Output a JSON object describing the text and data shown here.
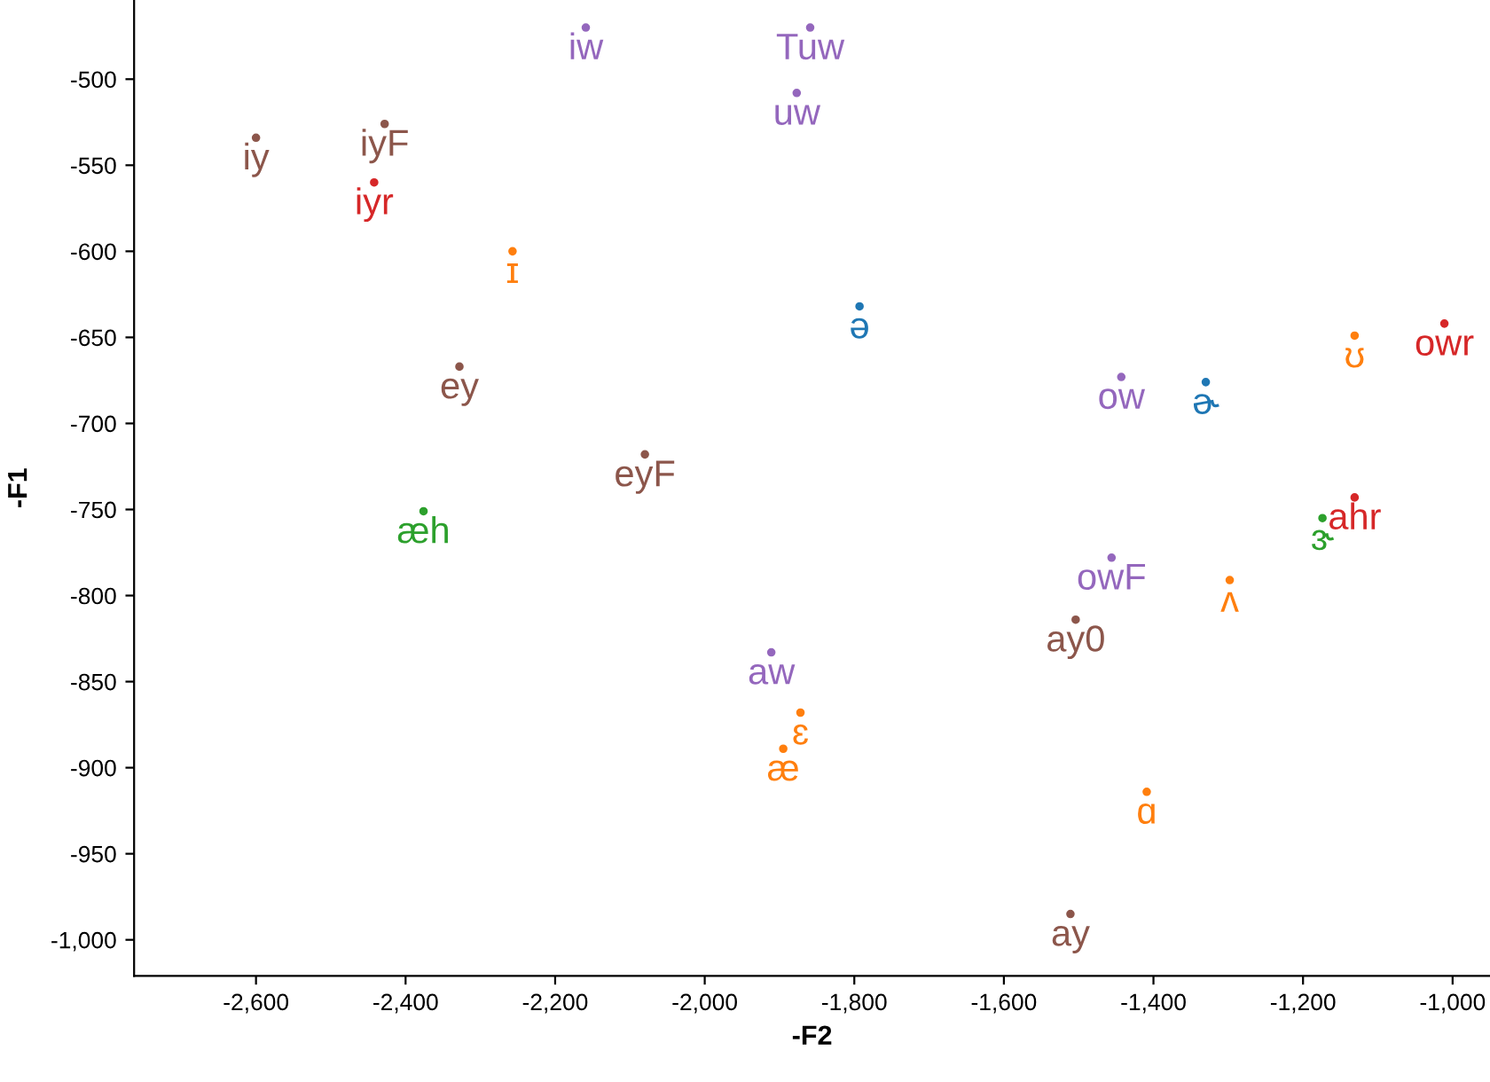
{
  "chart_data": {
    "type": "scatter",
    "xlabel": "-F2",
    "ylabel": "-F1",
    "marker": "circle",
    "grid": false,
    "legend": false,
    "xlim": [
      -2763,
      -950
    ],
    "ylim": [
      -1021,
      -454
    ],
    "xticks": [
      {
        "value": -2600,
        "label": "-2,600"
      },
      {
        "value": -2400,
        "label": "-2,400"
      },
      {
        "value": -2200,
        "label": "-2,200"
      },
      {
        "value": -2000,
        "label": "-2,000"
      },
      {
        "value": -1800,
        "label": "-1,800"
      },
      {
        "value": -1600,
        "label": "-1,600"
      },
      {
        "value": -1400,
        "label": "-1,400"
      },
      {
        "value": -1200,
        "label": "-1,200"
      },
      {
        "value": -1000,
        "label": "-1,000"
      }
    ],
    "yticks": [
      -500,
      -550,
      -600,
      -650,
      -700,
      -750,
      -800,
      -850,
      -900,
      -950,
      {
        "value": -1000,
        "label": "-1,000"
      }
    ],
    "series": [
      {
        "color": "#8c564b",
        "x": [
          -2600,
          -2428,
          -2328,
          -2080,
          -1504,
          -1511
        ],
        "values": [
          -534,
          -526,
          -667,
          -718,
          -814,
          -985
        ],
        "value_labels": [
          "iy",
          "iyF",
          "ey",
          "eyF",
          "ay0",
          "ay"
        ]
      },
      {
        "color": "#9467bd",
        "x": [
          -2159,
          -1859,
          -1877,
          -1443,
          -1456,
          -1911
        ],
        "values": [
          -470,
          -470,
          -508,
          -673,
          -778,
          -833
        ],
        "value_labels": [
          "iw",
          "Tuw",
          "uw",
          "ow",
          "owF",
          "aw"
        ]
      },
      {
        "color": "#d62728",
        "x": [
          -2442,
          -1011,
          -1131
        ],
        "values": [
          -560,
          -642,
          -743
        ],
        "value_labels": [
          "iyr",
          "owr",
          "ahr"
        ]
      },
      {
        "color": "#ff7f0e",
        "x": [
          -2257,
          -1131,
          -1298,
          -1872,
          -1895,
          -1409
        ],
        "values": [
          -600,
          -649,
          -791,
          -868,
          -889,
          -914
        ],
        "value_labels": [
          "ɪ",
          "ʊ",
          "ʌ",
          "ɛ",
          "æ",
          "ɑ"
        ]
      },
      {
        "color": "#1f77b4",
        "x": [
          -1793,
          -1330
        ],
        "values": [
          -632,
          -676
        ],
        "value_labels": [
          "ə",
          "ɚ"
        ]
      },
      {
        "color": "#2ca02c",
        "x": [
          -2376,
          -1174
        ],
        "values": [
          -751,
          -755
        ],
        "value_labels": [
          "æh",
          "ɝ"
        ]
      }
    ]
  }
}
